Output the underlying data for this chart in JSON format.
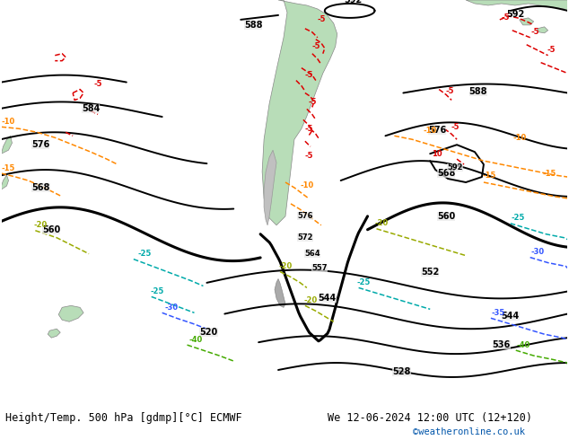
{
  "title_left": "Height/Temp. 500 hPa [gdmp][°C] ECMWF",
  "title_right": "We 12-06-2024 12:00 UTC (12+120)",
  "credit": "©weatheronline.co.uk",
  "credit_color": "#0055aa",
  "bg_color": "#e8e8e8",
  "land_color": "#b8ddb8",
  "land_edge": "#888888",
  "fig_width": 6.34,
  "fig_height": 4.9,
  "dpi": 100,
  "title_fontsize": 8.5,
  "credit_fontsize": 7.5,
  "black_lw": 1.4,
  "thick_lw": 2.2,
  "temp_lw": 1.1
}
